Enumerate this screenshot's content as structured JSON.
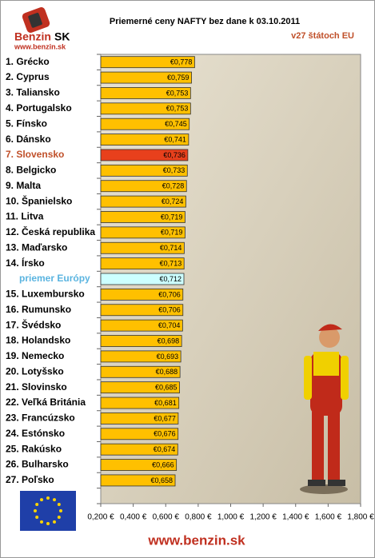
{
  "logo": {
    "name": "Benzin",
    "suffix": "SK",
    "url": "www.benzin.sk"
  },
  "footer": "www.benzin.sk",
  "chart_data": {
    "type": "barh",
    "title": "Priemerné ceny NAFTY bez dane k 03.10.2011",
    "subtitle": "v27 štátoch EU",
    "categories": [
      "1. Grécko",
      "2. Cyprus",
      "3. Taliansko",
      "4. Portugalsko",
      "5. Fínsko",
      "6. Dánsko",
      "7. Slovensko",
      "8. Belgicko",
      "9. Malta",
      "10. Španielsko",
      "11. Litva",
      "12. Česká republika",
      "13. Maďarsko",
      "14. Írsko",
      "priemer Európy",
      "15. Luxembursko",
      "16. Rumunsko",
      "17. Švédsko",
      "18. Holandsko",
      "19. Nemecko",
      "20. Lotyšsko",
      "21. Slovinsko",
      "22. Veľká Británia",
      "23. Francúzsko",
      "24. Estónsko",
      "25. Rakúsko",
      "26. Bulharsko",
      "27. Poľsko",
      null
    ],
    "values": [
      0.778,
      0.759,
      0.753,
      0.753,
      0.745,
      0.741,
      0.736,
      0.733,
      0.728,
      0.724,
      0.719,
      0.719,
      0.714,
      0.713,
      0.712,
      0.706,
      0.706,
      0.704,
      0.698,
      0.693,
      0.688,
      0.685,
      0.681,
      0.677,
      0.676,
      0.674,
      0.666,
      0.658,
      null
    ],
    "value_labels": [
      "€0,778",
      "€0,759",
      "€0,753",
      "€0,753",
      "€0,745",
      "€0,741",
      "€0,736",
      "€0,733",
      "€0,728",
      "€0,724",
      "€0,719",
      "€0,719",
      "€0,714",
      "€0,713",
      "€0,712",
      "€0,706",
      "€0,706",
      "€0,704",
      "€0,698",
      "€0,693",
      "€0,688",
      "€0,685",
      "€0,681",
      "€0,677",
      "€0,676",
      "€0,674",
      "€0,666",
      "€0,658",
      null
    ],
    "color": "#ffc000",
    "highlight_colors": {
      "6": "#e8401c",
      "14": "#ccffff"
    },
    "label_colors": {
      "6": "#c0502a",
      "14": "#5ab4e0"
    },
    "xlim": [
      0.2,
      1.8
    ],
    "xticks": [
      {
        "value": 0.2,
        "label": "0,200 €"
      },
      {
        "value": 0.4,
        "label": "0,400 €"
      },
      {
        "value": 0.6,
        "label": "0,600 €"
      },
      {
        "value": 0.8,
        "label": "0,800 €"
      },
      {
        "value": 1.0,
        "label": "1,000 €"
      },
      {
        "value": 1.2,
        "label": "1,200 €"
      },
      {
        "value": 1.4,
        "label": "1,400 €"
      },
      {
        "value": 1.6,
        "label": "1,600 €"
      },
      {
        "value": 1.8,
        "label": "1,800 €"
      }
    ]
  }
}
